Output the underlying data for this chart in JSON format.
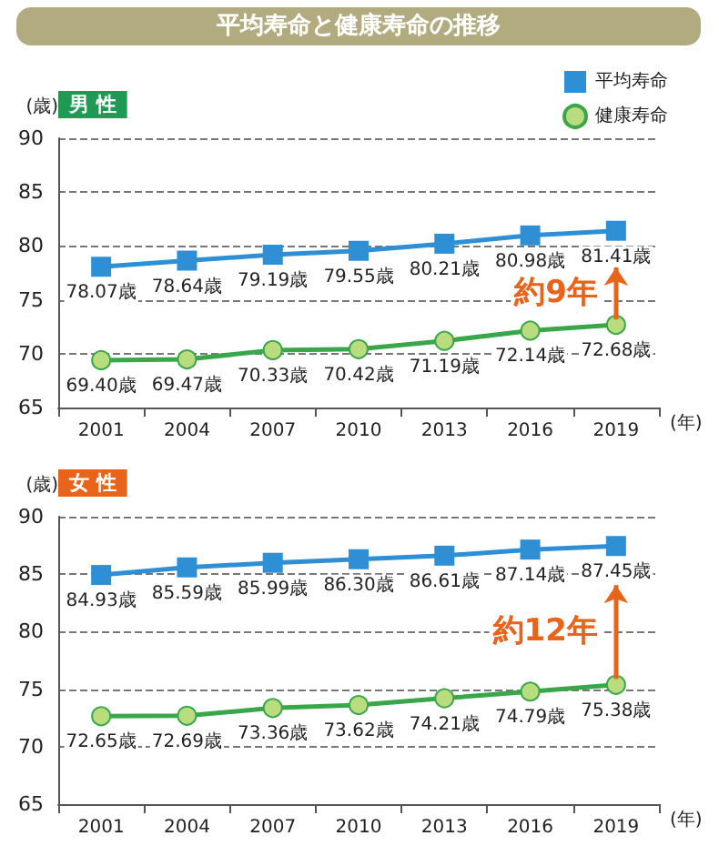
{
  "chart_data": [
    {
      "type": "line",
      "title": "平均寿命と健康寿命の推移",
      "subtitle": "男 性",
      "ylabel": "(歳)",
      "xlabel": "(年)",
      "categories": [
        "2001",
        "2004",
        "2007",
        "2010",
        "2013",
        "2016",
        "2019"
      ],
      "series": [
        {
          "name": "平均寿命",
          "color": "#2f8fd5",
          "marker": "square",
          "values": [
            78.07,
            78.64,
            79.19,
            79.55,
            80.21,
            80.98,
            81.41
          ],
          "value_labels": [
            "78.07歳",
            "78.64歳",
            "79.19歳",
            "79.55歳",
            "80.21歳",
            "80.98歳",
            "81.41歳"
          ]
        },
        {
          "name": "健康寿命",
          "color": "#3aa64a",
          "marker": "circle",
          "values": [
            69.4,
            69.47,
            70.33,
            70.42,
            71.19,
            72.14,
            72.68
          ],
          "value_labels": [
            "69.40歳",
            "69.47歳",
            "70.33歳",
            "70.42歳",
            "71.19歳",
            "72.14歳",
            "72.68歳"
          ]
        }
      ],
      "annotations": [
        "約9年"
      ],
      "ylim": [
        65,
        90
      ],
      "yticks": [
        65,
        70,
        75,
        80,
        85,
        90
      ],
      "grid": "y",
      "legend": "top right"
    },
    {
      "type": "line",
      "subtitle": "女 性",
      "ylabel": "(歳)",
      "xlabel": "(年)",
      "categories": [
        "2001",
        "2004",
        "2007",
        "2010",
        "2013",
        "2016",
        "2019"
      ],
      "series": [
        {
          "color": "#2f8fd5",
          "marker": "square",
          "values": [
            84.93,
            85.59,
            85.99,
            86.3,
            86.61,
            87.14,
            87.45
          ],
          "value_labels": [
            "84.93歳",
            "85.59歳",
            "85.99歳",
            "86.30歳",
            "86.61歳",
            "87.14歳",
            "87.45歳"
          ]
        },
        {
          "color": "#3aa64a",
          "marker": "circle",
          "values": [
            72.65,
            72.69,
            73.36,
            73.62,
            74.21,
            74.79,
            75.38
          ],
          "value_labels": [
            "72.65歳",
            "72.69歳",
            "73.36歳",
            "73.62歳",
            "74.21歳",
            "74.79歳",
            "75.38歳"
          ]
        }
      ],
      "annotations": [
        "約12年"
      ],
      "ylim": [
        65,
        90
      ],
      "yticks": [
        65,
        70,
        75,
        80,
        85,
        90
      ],
      "grid": "y",
      "legend": false
    }
  ]
}
